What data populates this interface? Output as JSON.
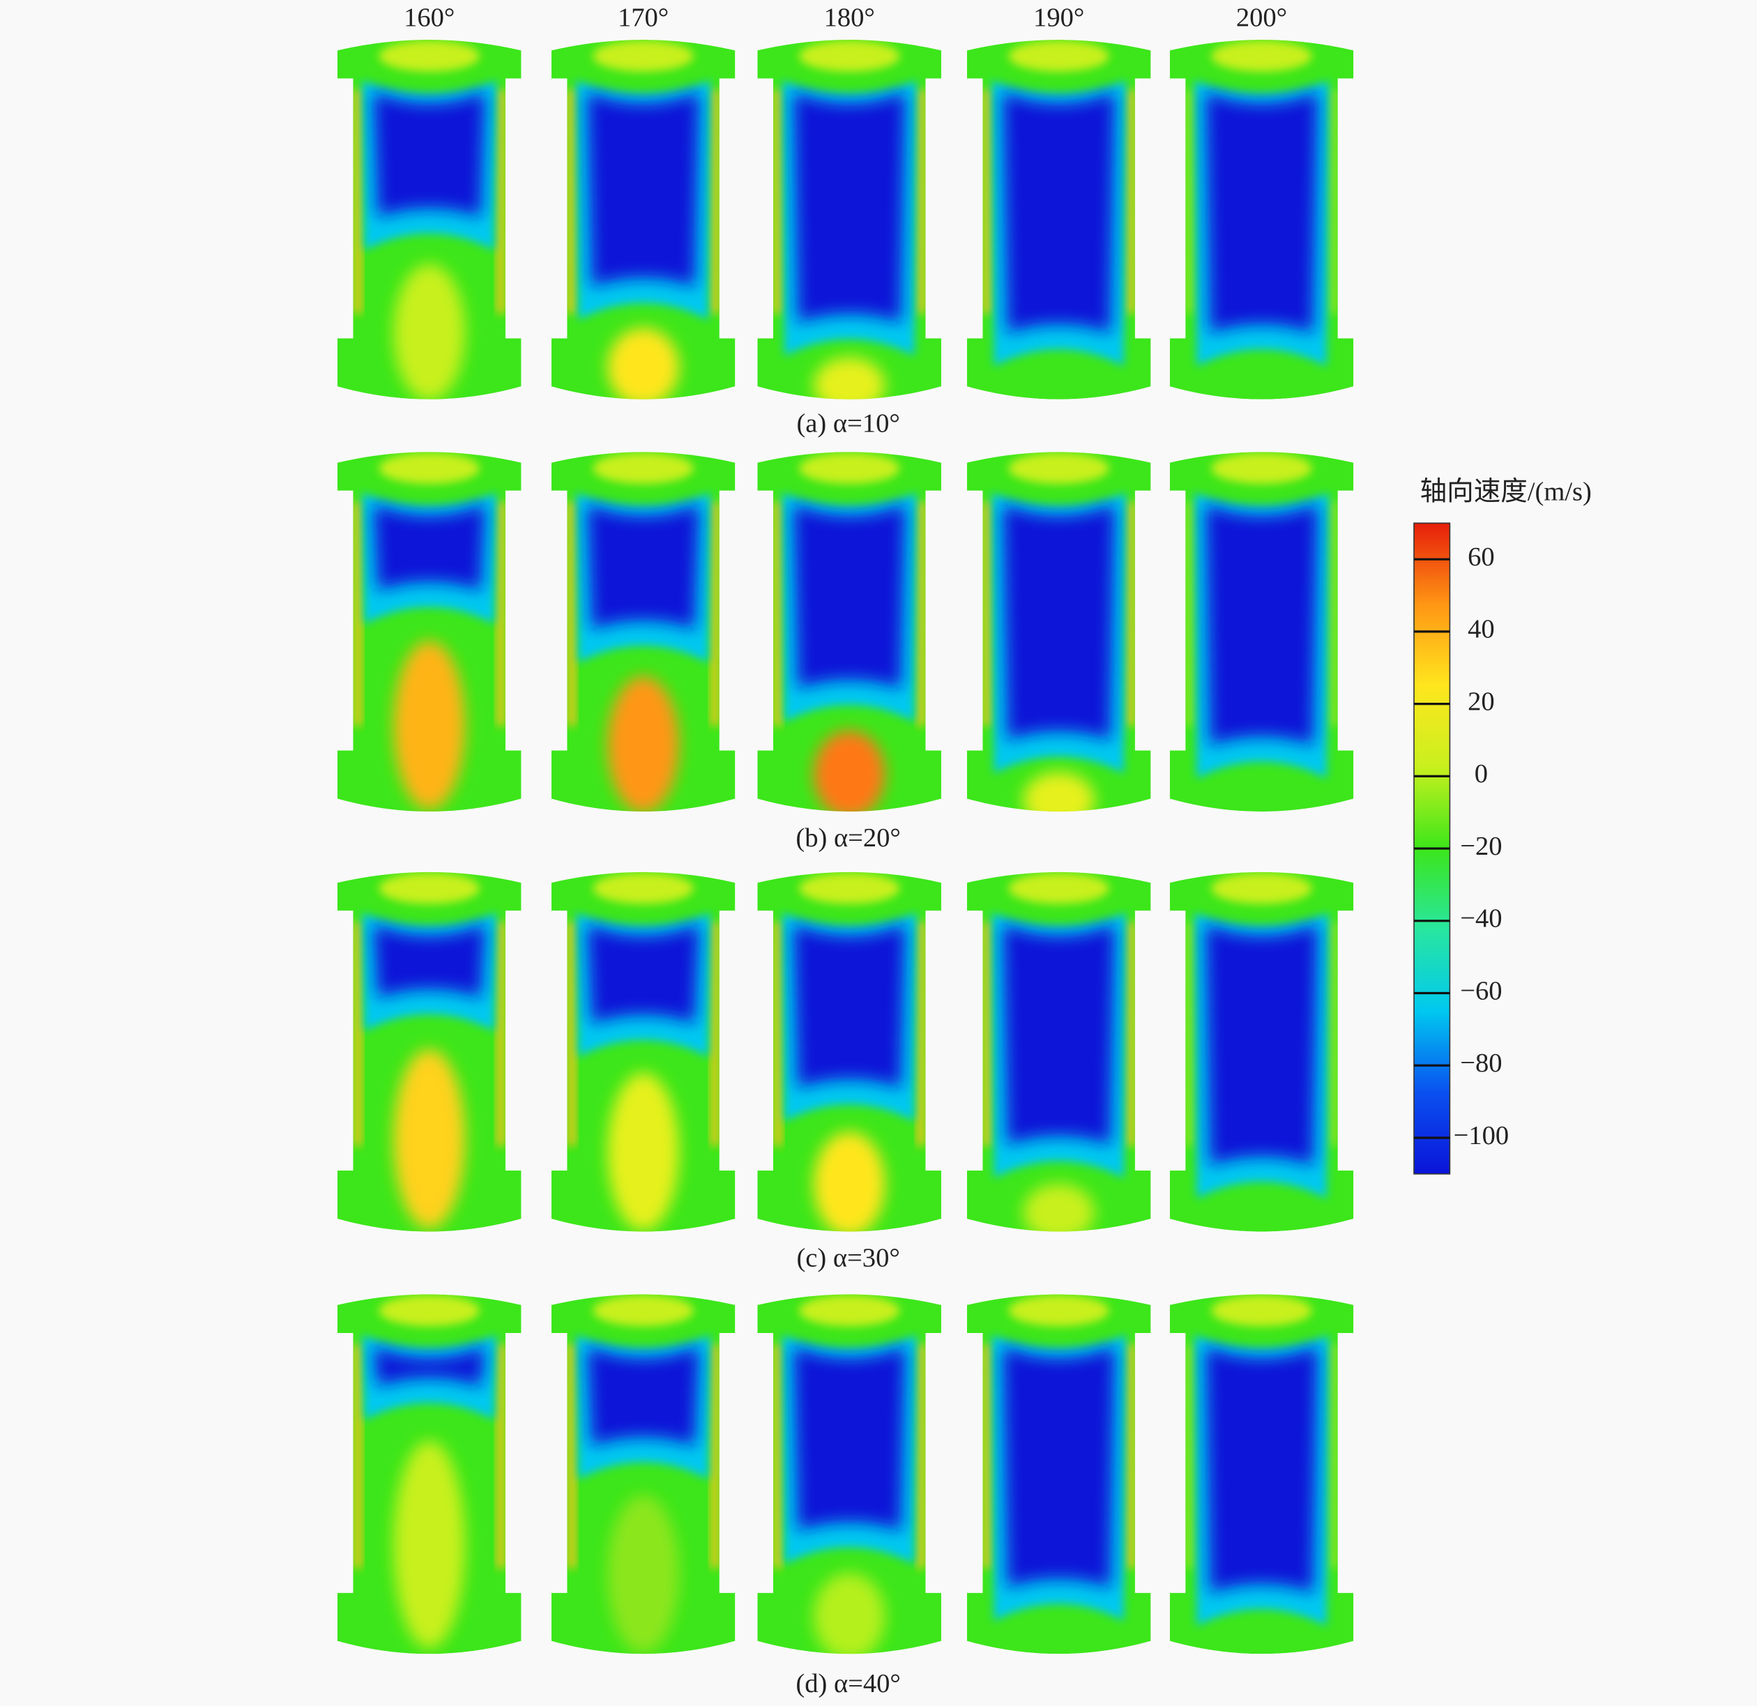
{
  "column_headers": [
    "160°",
    "170°",
    "180°",
    "190°",
    "200°"
  ],
  "rows": [
    {
      "caption": "(a) α=10°"
    },
    {
      "caption": "(b) α=20°"
    },
    {
      "caption": "(c) α=30°"
    },
    {
      "caption": "(d) α=40°"
    }
  ],
  "colorbar": {
    "title": "轴向速度/(m/s)",
    "range": [
      -110,
      70
    ],
    "colors": [
      "#0a14d8",
      "#0a50f0",
      "#00c8f0",
      "#28e6a0",
      "#3ce61a",
      "#c8f01e",
      "#ffe61e",
      "#ff9614",
      "#e61e0a"
    ],
    "ticks": [
      60,
      40,
      20,
      0,
      {
        "value": -20,
        "label": "−20"
      },
      {
        "value": -40,
        "label": "−40"
      },
      {
        "value": -60,
        "label": "−60"
      },
      {
        "value": -80,
        "label": "−80"
      },
      {
        "value": -100,
        "label": "−100"
      }
    ]
  }
}
